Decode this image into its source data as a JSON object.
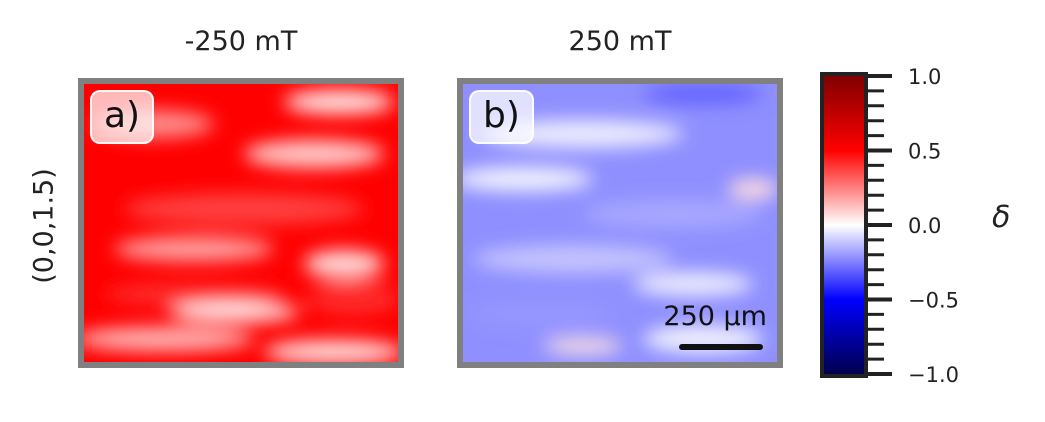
{
  "chart_data": {
    "type": "heatmap",
    "row_label": "(0,0,1.5)",
    "panels": [
      {
        "title": "-250 mT",
        "label": "a)",
        "mean_value": 0.5
      },
      {
        "title": "250 mT",
        "label": "b)",
        "mean_value": -0.22,
        "scalebar": "250 μm"
      }
    ],
    "colorbar": {
      "label": "δ",
      "colormap": "seismic",
      "vmin": -1.0,
      "vmax": 1.0,
      "major_ticks": [
        -1.0,
        -0.5,
        0.0,
        0.5,
        1.0
      ],
      "tick_labels": [
        "−1.0",
        "−0.5",
        "0.0",
        "0.5",
        "1.0"
      ]
    }
  }
}
